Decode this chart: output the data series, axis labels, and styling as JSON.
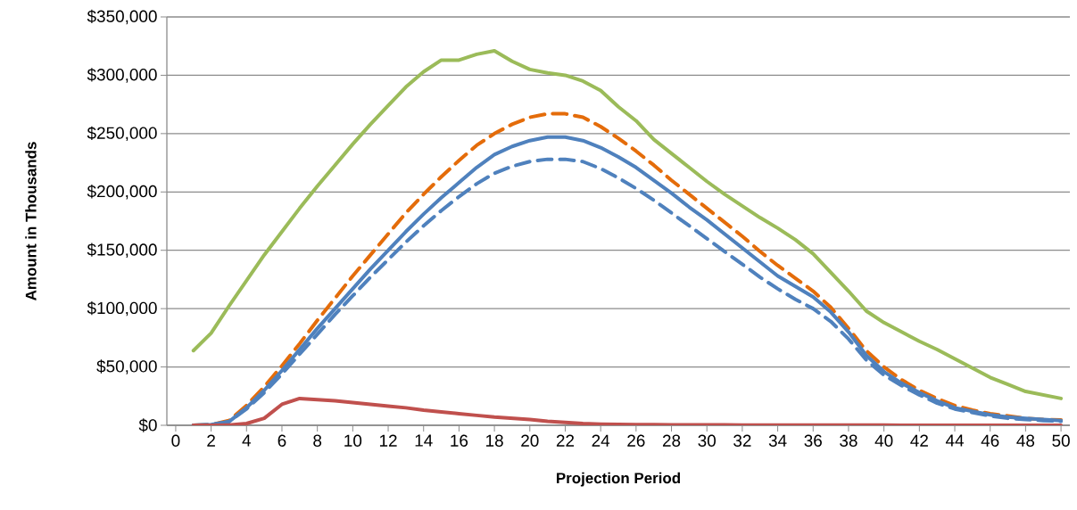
{
  "chart_data": {
    "type": "line",
    "xlabel": "Projection Period",
    "ylabel": "Amount in Thousands",
    "x": [
      1,
      2,
      3,
      4,
      5,
      6,
      7,
      8,
      9,
      10,
      11,
      12,
      13,
      14,
      15,
      16,
      17,
      18,
      19,
      20,
      21,
      22,
      23,
      24,
      25,
      26,
      27,
      28,
      29,
      30,
      31,
      32,
      33,
      34,
      35,
      36,
      37,
      38,
      39,
      40,
      41,
      42,
      43,
      44,
      45,
      46,
      47,
      48,
      49,
      50
    ],
    "xlim": [
      -0.5,
      50.5
    ],
    "xticks": [
      0,
      2,
      4,
      6,
      8,
      10,
      12,
      14,
      16,
      18,
      20,
      22,
      24,
      26,
      28,
      30,
      32,
      34,
      36,
      38,
      40,
      42,
      44,
      46,
      48,
      50
    ],
    "ylim": [
      0,
      350000
    ],
    "yticks": [
      {
        "value": 0,
        "label": "$0"
      },
      {
        "value": 50000,
        "label": "$50,000"
      },
      {
        "value": 100000,
        "label": "$100,000"
      },
      {
        "value": 150000,
        "label": "$150,000"
      },
      {
        "value": 200000,
        "label": "$200,000"
      },
      {
        "value": 250000,
        "label": "$250,000"
      },
      {
        "value": 300000,
        "label": "$300,000"
      },
      {
        "value": 350000,
        "label": "$350,000"
      }
    ],
    "grid": "y",
    "marker": "none",
    "series": [
      {
        "color": "#9bbb59",
        "line_style": "solid",
        "values": [
          64000,
          79000,
          102000,
          124000,
          146000,
          166000,
          186000,
          205000,
          223000,
          241000,
          258000,
          274000,
          290000,
          303000,
          313000,
          313000,
          318000,
          321000,
          312000,
          305000,
          302000,
          300000,
          295000,
          287000,
          273000,
          261000,
          245000,
          233000,
          221000,
          209000,
          198000,
          188000,
          178000,
          169000,
          159000,
          147000,
          131000,
          115000,
          98000,
          88000,
          80000,
          72000,
          65000,
          57000,
          49000,
          41000,
          35000,
          29000,
          26000,
          23000
        ]
      },
      {
        "color": "#e46c0a",
        "line_style": "dashed",
        "values": [
          0,
          500,
          4000,
          17000,
          33000,
          51000,
          70000,
          90000,
          109000,
          128000,
          146000,
          164000,
          182000,
          198000,
          213000,
          227000,
          240000,
          250000,
          258000,
          264000,
          267000,
          267000,
          264000,
          256000,
          246000,
          235000,
          223000,
          210000,
          198000,
          186000,
          174000,
          162000,
          149000,
          137000,
          126000,
          115000,
          101000,
          83000,
          64000,
          50000,
          39000,
          30000,
          23000,
          17000,
          13000,
          10000,
          8000,
          6000,
          5000,
          4500
        ]
      },
      {
        "color": "#4f81bd",
        "line_style": "solid",
        "values": [
          0,
          500,
          3000,
          15000,
          30000,
          47000,
          65000,
          83000,
          100000,
          117000,
          134000,
          150000,
          166000,
          181000,
          195000,
          208000,
          221000,
          232000,
          239000,
          244000,
          247000,
          247000,
          244000,
          238000,
          230000,
          221000,
          210000,
          199000,
          187000,
          176000,
          164000,
          152000,
          140000,
          128000,
          119000,
          110000,
          97000,
          80000,
          60000,
          46000,
          36000,
          28000,
          21000,
          15000,
          12000,
          9000,
          7000,
          6000,
          5000,
          4000
        ]
      },
      {
        "color": "#4f81bd",
        "line_style": "dashed",
        "values": [
          0,
          500,
          3000,
          14000,
          28000,
          44000,
          61000,
          78000,
          95000,
          111000,
          127000,
          142000,
          157000,
          171000,
          184000,
          196000,
          207000,
          216000,
          222000,
          226000,
          228000,
          228000,
          226000,
          220000,
          212000,
          203000,
          193000,
          182000,
          171000,
          160000,
          149000,
          138000,
          127000,
          117000,
          108000,
          100000,
          89000,
          74000,
          56000,
          43000,
          34000,
          26000,
          19000,
          14000,
          11000,
          8000,
          6000,
          5000,
          4000,
          3500
        ]
      },
      {
        "color": "#c0504d",
        "line_style": "solid",
        "values": [
          0,
          0,
          200,
          1500,
          6000,
          18000,
          23000,
          22000,
          21000,
          19500,
          18000,
          16500,
          15000,
          13000,
          11500,
          10000,
          8500,
          7000,
          6000,
          5000,
          3500,
          2500,
          1500,
          1000,
          800,
          600,
          500,
          400,
          300,
          300,
          300,
          200,
          200,
          200,
          100,
          100,
          100,
          100,
          100,
          100,
          0,
          0,
          0,
          0,
          0,
          0,
          0,
          0,
          0,
          0
        ]
      }
    ]
  }
}
